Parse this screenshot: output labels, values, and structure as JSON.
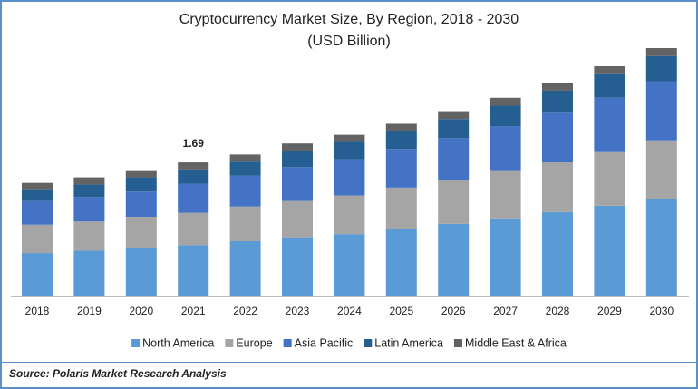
{
  "chart_data": {
    "type": "stacked_bar",
    "title": "Cryptocurrency Market Size, By Region, 2018 - 2030",
    "subtitle": "(USD Billion)",
    "categories": [
      "2018",
      "2019",
      "2020",
      "2021",
      "2022",
      "2023",
      "2024",
      "2025",
      "2026",
      "2027",
      "2028",
      "2029",
      "2030"
    ],
    "series": [
      {
        "name": "North America",
        "color": "#5b9bd5",
        "values": [
          0.54,
          0.57,
          0.61,
          0.64,
          0.69,
          0.74,
          0.78,
          0.84,
          0.91,
          0.98,
          1.06,
          1.14,
          1.23
        ]
      },
      {
        "name": "Europe",
        "color": "#a5a5a5",
        "values": [
          0.36,
          0.37,
          0.39,
          0.41,
          0.44,
          0.46,
          0.49,
          0.53,
          0.55,
          0.6,
          0.63,
          0.68,
          0.74
        ]
      },
      {
        "name": "Asia Pacific",
        "color": "#4472c4",
        "values": [
          0.3,
          0.31,
          0.32,
          0.37,
          0.39,
          0.43,
          0.46,
          0.49,
          0.54,
          0.57,
          0.63,
          0.69,
          0.75
        ]
      },
      {
        "name": "Latin America",
        "color": "#255e91",
        "values": [
          0.15,
          0.16,
          0.18,
          0.18,
          0.18,
          0.21,
          0.22,
          0.23,
          0.24,
          0.26,
          0.28,
          0.3,
          0.32
        ]
      },
      {
        "name": "Middle East & Africa",
        "color": "#636363",
        "values": [
          0.08,
          0.09,
          0.08,
          0.09,
          0.09,
          0.09,
          0.09,
          0.09,
          0.1,
          0.1,
          0.1,
          0.1,
          0.1
        ]
      }
    ],
    "totals": [
      null,
      null,
      null,
      1.69,
      null,
      null,
      null,
      null,
      null,
      null,
      null,
      null,
      null
    ],
    "source": "Source: Polaris  Market Research Analysis"
  }
}
